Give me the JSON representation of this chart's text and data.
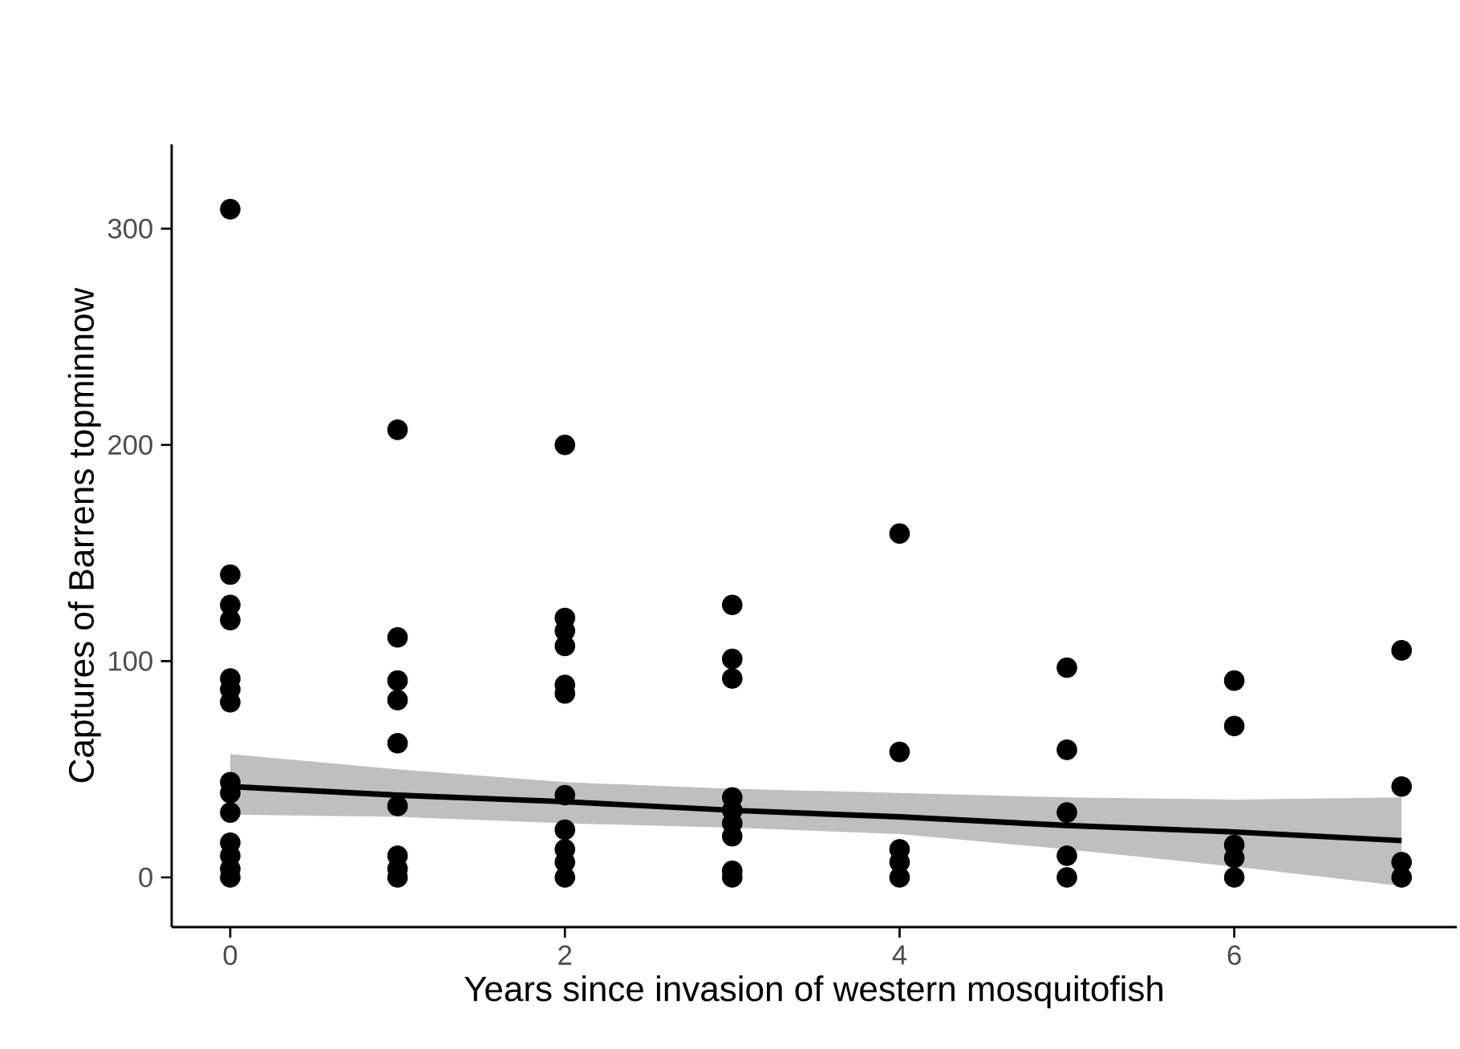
{
  "chart_data": {
    "type": "scatter",
    "xlabel": "Years since invasion of western mosquitofish",
    "ylabel": "Captures of Barrens topminnow",
    "xlim": [
      -0.35,
      7.33
    ],
    "ylim": [
      -23,
      339
    ],
    "xticks": [
      0,
      2,
      4,
      6
    ],
    "yticks": [
      0,
      100,
      200,
      300
    ],
    "grid": false,
    "series": [
      {
        "type": "scatter",
        "marker": "circle",
        "color": "#000000",
        "x": [
          0,
          0,
          0,
          0,
          0,
          0,
          0,
          0,
          0,
          0,
          0,
          0,
          0,
          0,
          1,
          1,
          1,
          1,
          1,
          1,
          1,
          1,
          1,
          2,
          2,
          2,
          2,
          2,
          2,
          2,
          2,
          2,
          2,
          2,
          3,
          3,
          3,
          3,
          3,
          3,
          3,
          3,
          3,
          4,
          4,
          4,
          4,
          4,
          5,
          5,
          5,
          5,
          5,
          6,
          6,
          6,
          6,
          6,
          7,
          7,
          7,
          7
        ],
        "values": [
          309,
          140,
          126,
          119,
          92,
          87,
          81,
          44,
          39,
          30,
          16,
          10,
          4,
          0,
          207,
          111,
          91,
          82,
          62,
          33,
          10,
          4,
          0,
          200,
          120,
          114,
          107,
          89,
          85,
          38,
          22,
          13,
          7,
          0,
          126,
          101,
          92,
          37,
          31,
          25,
          19,
          3,
          0,
          159,
          58,
          13,
          7,
          0,
          97,
          59,
          30,
          10,
          0,
          91,
          70,
          15,
          9,
          0,
          105,
          42,
          7,
          0
        ]
      },
      {
        "type": "line",
        "marker": "none",
        "line_style": "solid",
        "color": "#000000",
        "x": [
          0,
          1,
          2,
          3,
          4,
          5,
          6,
          7
        ],
        "values": [
          42,
          38,
          35,
          31,
          28,
          24,
          21,
          17
        ],
        "lower": [
          29,
          28,
          25,
          23,
          20,
          13,
          5,
          -4
        ],
        "upper": [
          57,
          50,
          44,
          41,
          39,
          37,
          36,
          37
        ]
      }
    ]
  }
}
